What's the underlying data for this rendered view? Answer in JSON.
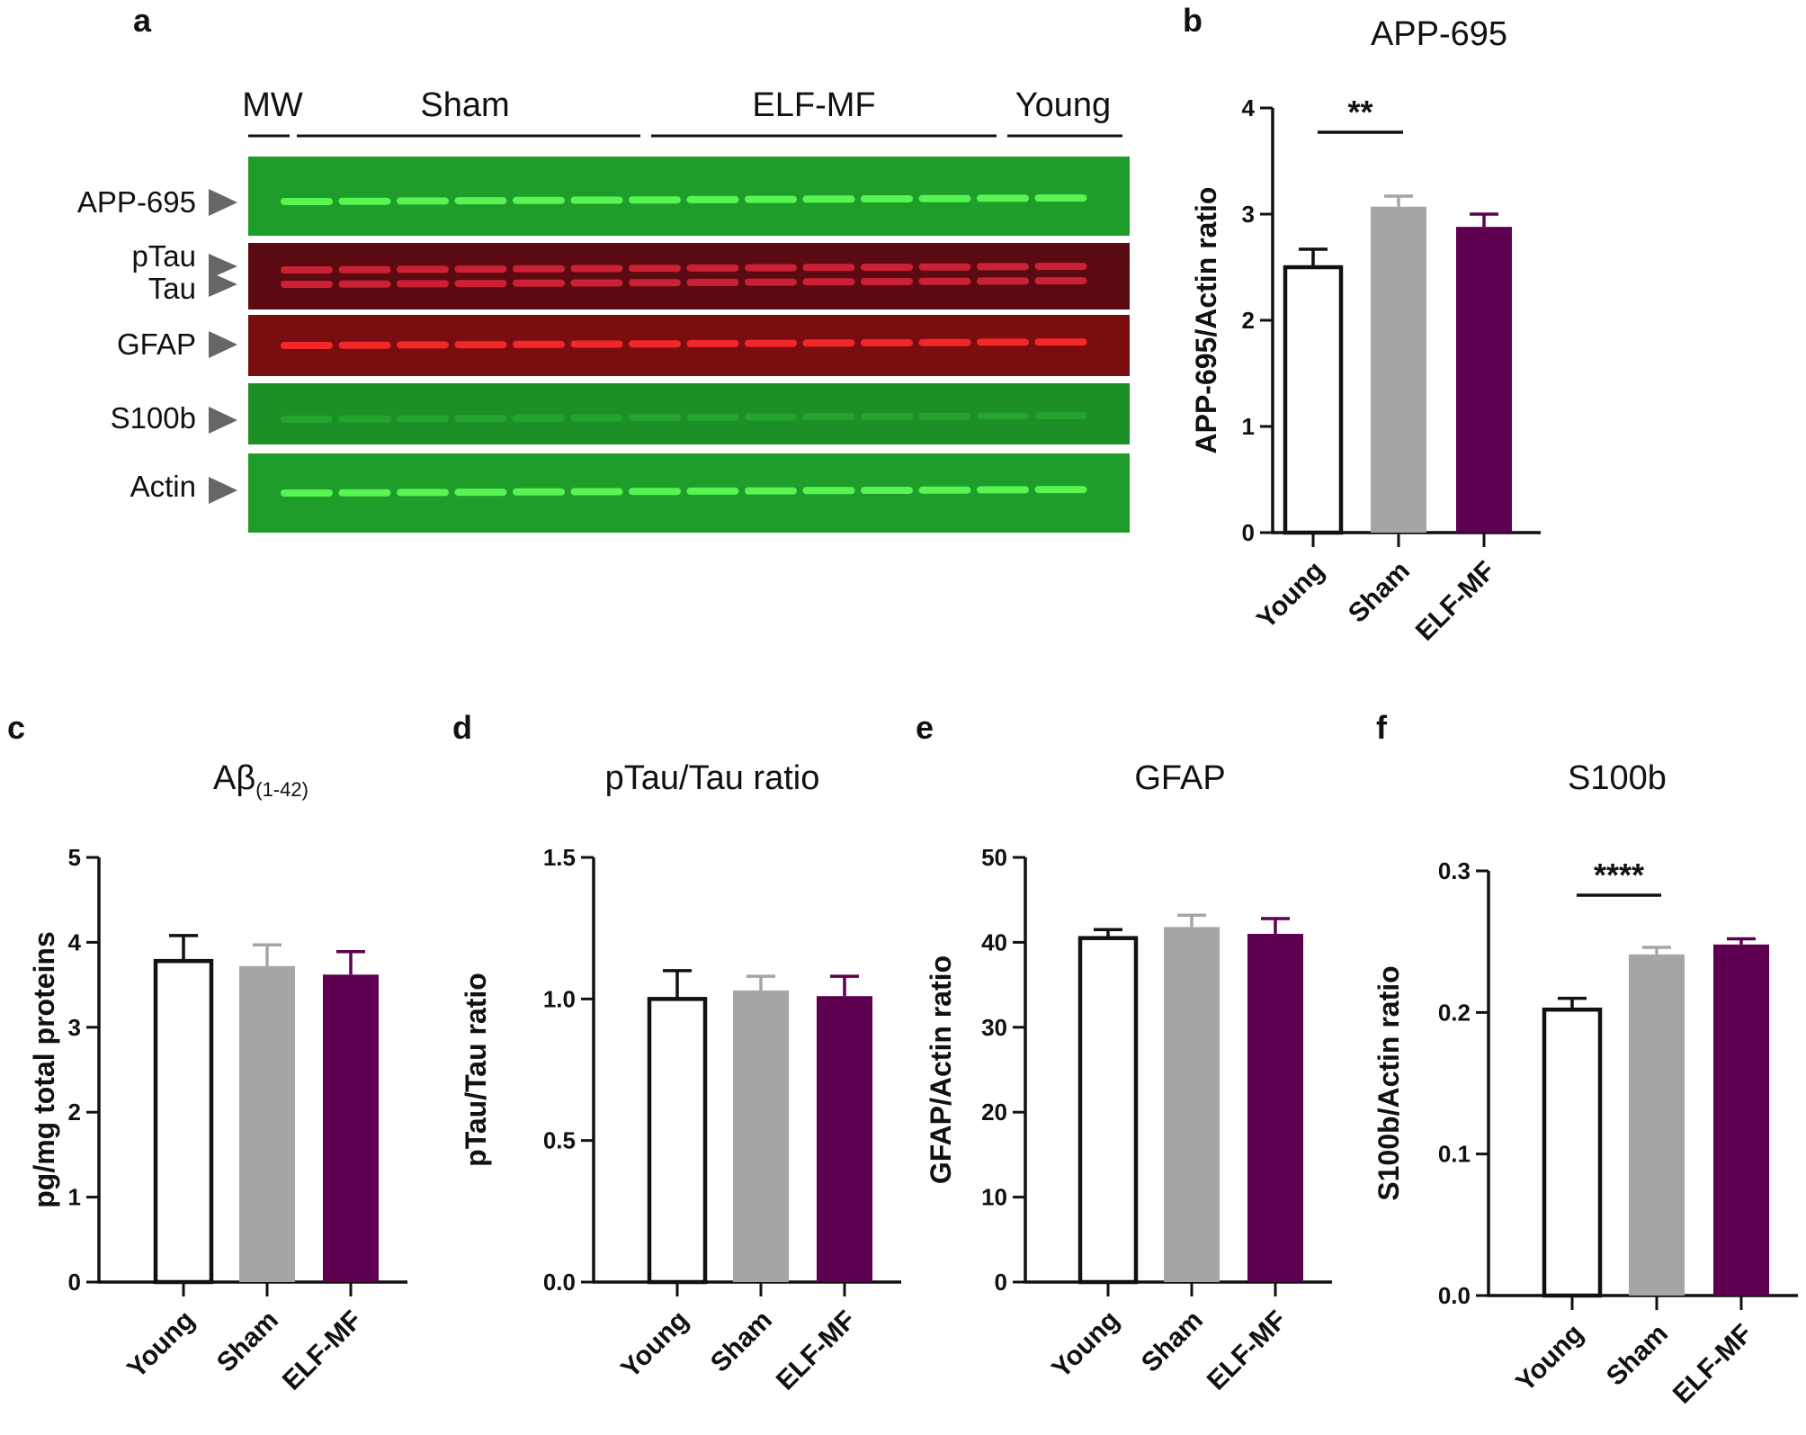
{
  "panels": {
    "a": "a",
    "b": "b",
    "c": "c",
    "d": "d",
    "e": "e",
    "f": "f"
  },
  "blot": {
    "groups": [
      "MW",
      "Sham",
      "ELF-MF",
      "Young"
    ],
    "rows": [
      "APP-695",
      "pTau",
      "Tau",
      "GFAP",
      "S100b",
      "Actin"
    ],
    "colors": {
      "green_bg": "#1f9d2a",
      "green_band": "#5cff56",
      "red_bg": "#7a0d10",
      "red_band": "#ff2a2a",
      "tau_bg": "#5a0a10",
      "tau_band": "#d8233a"
    }
  },
  "colors": {
    "young": "#ffffff",
    "sham": "#a5a5a8",
    "elf": "#5e0050",
    "axis": "#111111"
  },
  "chart_data": [
    {
      "panel": "b",
      "type": "bar",
      "title": "APP-695",
      "title_sub": "",
      "ylabel": "APP-695/Actin ratio",
      "categories": [
        "Young",
        "Sham",
        "ELF-MF"
      ],
      "values": [
        2.5,
        3.07,
        2.88
      ],
      "errors": [
        0.17,
        0.1,
        0.12
      ],
      "ylim": [
        0,
        4
      ],
      "yticks": [
        "0",
        "1",
        "2",
        "3",
        "4"
      ],
      "significance": {
        "label": "**",
        "from": 0,
        "to": 1
      }
    },
    {
      "panel": "c",
      "type": "bar",
      "title": "Aβ",
      "title_sub": "(1-42)",
      "ylabel": "pg/mg total proteins",
      "categories": [
        "Young",
        "Sham",
        "ELF-MF"
      ],
      "values": [
        3.78,
        3.72,
        3.62
      ],
      "errors": [
        0.3,
        0.25,
        0.27
      ],
      "ylim": [
        0,
        5
      ],
      "yticks": [
        "0",
        "1",
        "2",
        "3",
        "4",
        "5"
      ],
      "significance": null
    },
    {
      "panel": "d",
      "type": "bar",
      "title": "pTau/Tau ratio",
      "title_sub": "",
      "ylabel": "pTau/Tau ratio",
      "categories": [
        "Young",
        "Sham",
        "ELF-MF"
      ],
      "values": [
        1.0,
        1.03,
        1.01
      ],
      "errors": [
        0.1,
        0.05,
        0.07
      ],
      "ylim": [
        0,
        1.5
      ],
      "yticks": [
        "0.0",
        "0.5",
        "1.0",
        "1.5"
      ],
      "significance": null
    },
    {
      "panel": "e",
      "type": "bar",
      "title": "GFAP",
      "title_sub": "",
      "ylabel": "GFAP/Actin ratio",
      "categories": [
        "Young",
        "Sham",
        "ELF-MF"
      ],
      "values": [
        40.5,
        41.8,
        41.0
      ],
      "errors": [
        1.0,
        1.4,
        1.8
      ],
      "ylim": [
        0,
        50
      ],
      "yticks": [
        "0",
        "10",
        "20",
        "30",
        "40",
        "50"
      ],
      "significance": null
    },
    {
      "panel": "f",
      "type": "bar",
      "title": "S100b",
      "title_sub": "",
      "ylabel": "S100b/Actin ratio",
      "categories": [
        "Young",
        "Sham",
        "ELF-MF"
      ],
      "values": [
        0.202,
        0.241,
        0.248
      ],
      "errors": [
        0.008,
        0.005,
        0.004
      ],
      "ylim": [
        0,
        0.3
      ],
      "yticks": [
        "0.0",
        "0.1",
        "0.2",
        "0.3"
      ],
      "significance": {
        "label": "****",
        "from": 0,
        "to": 1
      }
    }
  ]
}
